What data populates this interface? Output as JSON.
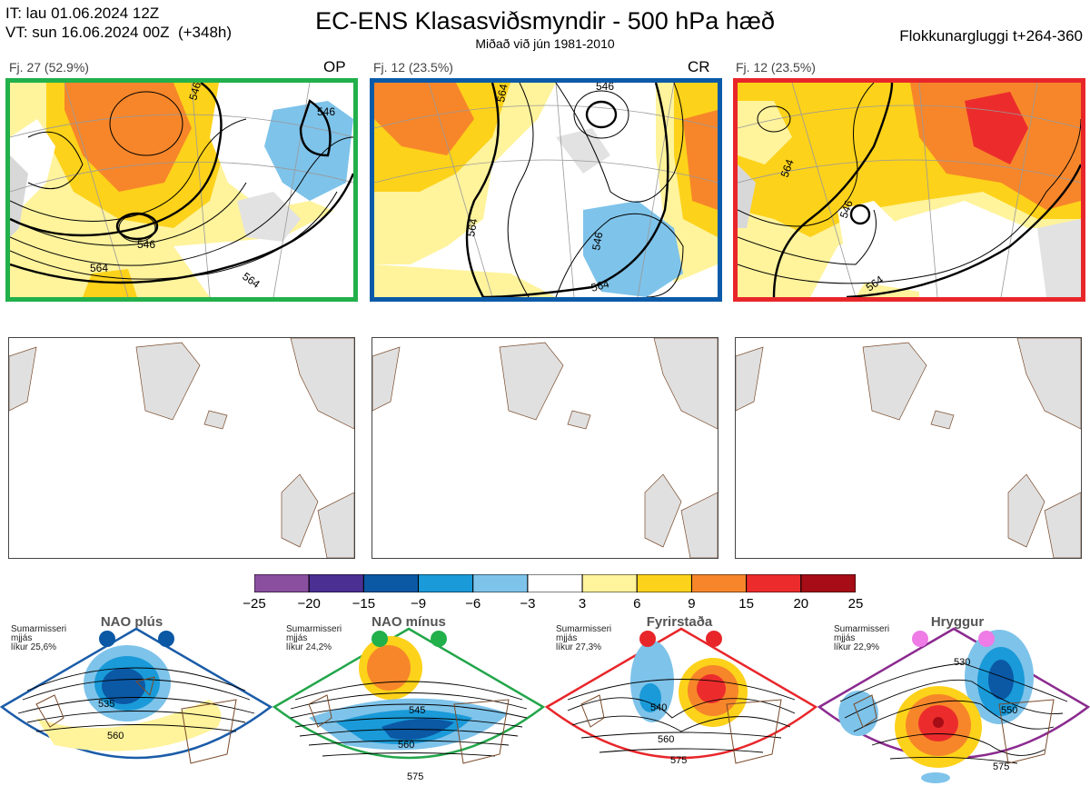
{
  "header": {
    "it_line": "IT: lau 01.06.2024 12Z",
    "vt_line": "VT: sun 16.06.2024 00Z  (+348h)",
    "title": "EC-ENS Klasasviðsmyndir - 500 hPa hæð",
    "subtitle": "Miðað við jún 1981-2010",
    "window": "Flokkunargluggi t+264-360"
  },
  "panels": [
    {
      "label": "Fj. 27 (52.9%)",
      "tag": "OP",
      "border": "#22b04b",
      "contours": [
        "546",
        "564",
        "546",
        "564",
        "546"
      ]
    },
    {
      "label": "Fj. 12 (23.5%)",
      "tag": "CR",
      "border": "#0b5aa8",
      "contours": [
        "564",
        "546",
        "564",
        "546",
        "564"
      ]
    },
    {
      "label": "Fj. 12 (23.5%)",
      "tag": "",
      "border": "#e8262a",
      "contours": [
        "564",
        "546",
        "564"
      ]
    }
  ],
  "colorbar": {
    "labels": [
      "−25",
      "−20",
      "−15",
      "−9",
      "−6",
      "−3",
      "3",
      "6",
      "9",
      "15",
      "20",
      "25"
    ],
    "colors": [
      "#8b4fa0",
      "#4b2f93",
      "#0b58a5",
      "#1a9ad8",
      "#7ec3ea",
      "#ffffff",
      "#fff39c",
      "#fdd21a",
      "#f7862a",
      "#ec2c2c",
      "#a60d16"
    ]
  },
  "sections": [
    {
      "title": "NAO plús",
      "note": "Sumarmisseri\nmjjás\nlíkur 25,6%",
      "dot_color": "#0b58a5",
      "border": "#1a5ca8",
      "contours": [
        "535",
        "560"
      ]
    },
    {
      "title": "NAO mínus",
      "note": "Sumarmisseri\nmjjás\nlíkur 24,2%",
      "dot_color": "#22b04b",
      "border": "#22a64a",
      "contours": [
        "545",
        "560",
        "575"
      ]
    },
    {
      "title": "Fyrirstaða",
      "note": "Sumarmisseri\nmjjás\nlíkur 27,3%",
      "dot_color": "#e8262a",
      "border": "#e8262a",
      "contours": [
        "540",
        "560",
        "575"
      ]
    },
    {
      "title": "Hryggur",
      "note": "Sumarmisseri\nmjjás\nlíkur 22,9%",
      "dot_color": "#ee7be6",
      "border": "#8b2a8f",
      "contours": [
        "530",
        "550",
        "575"
      ]
    }
  ]
}
